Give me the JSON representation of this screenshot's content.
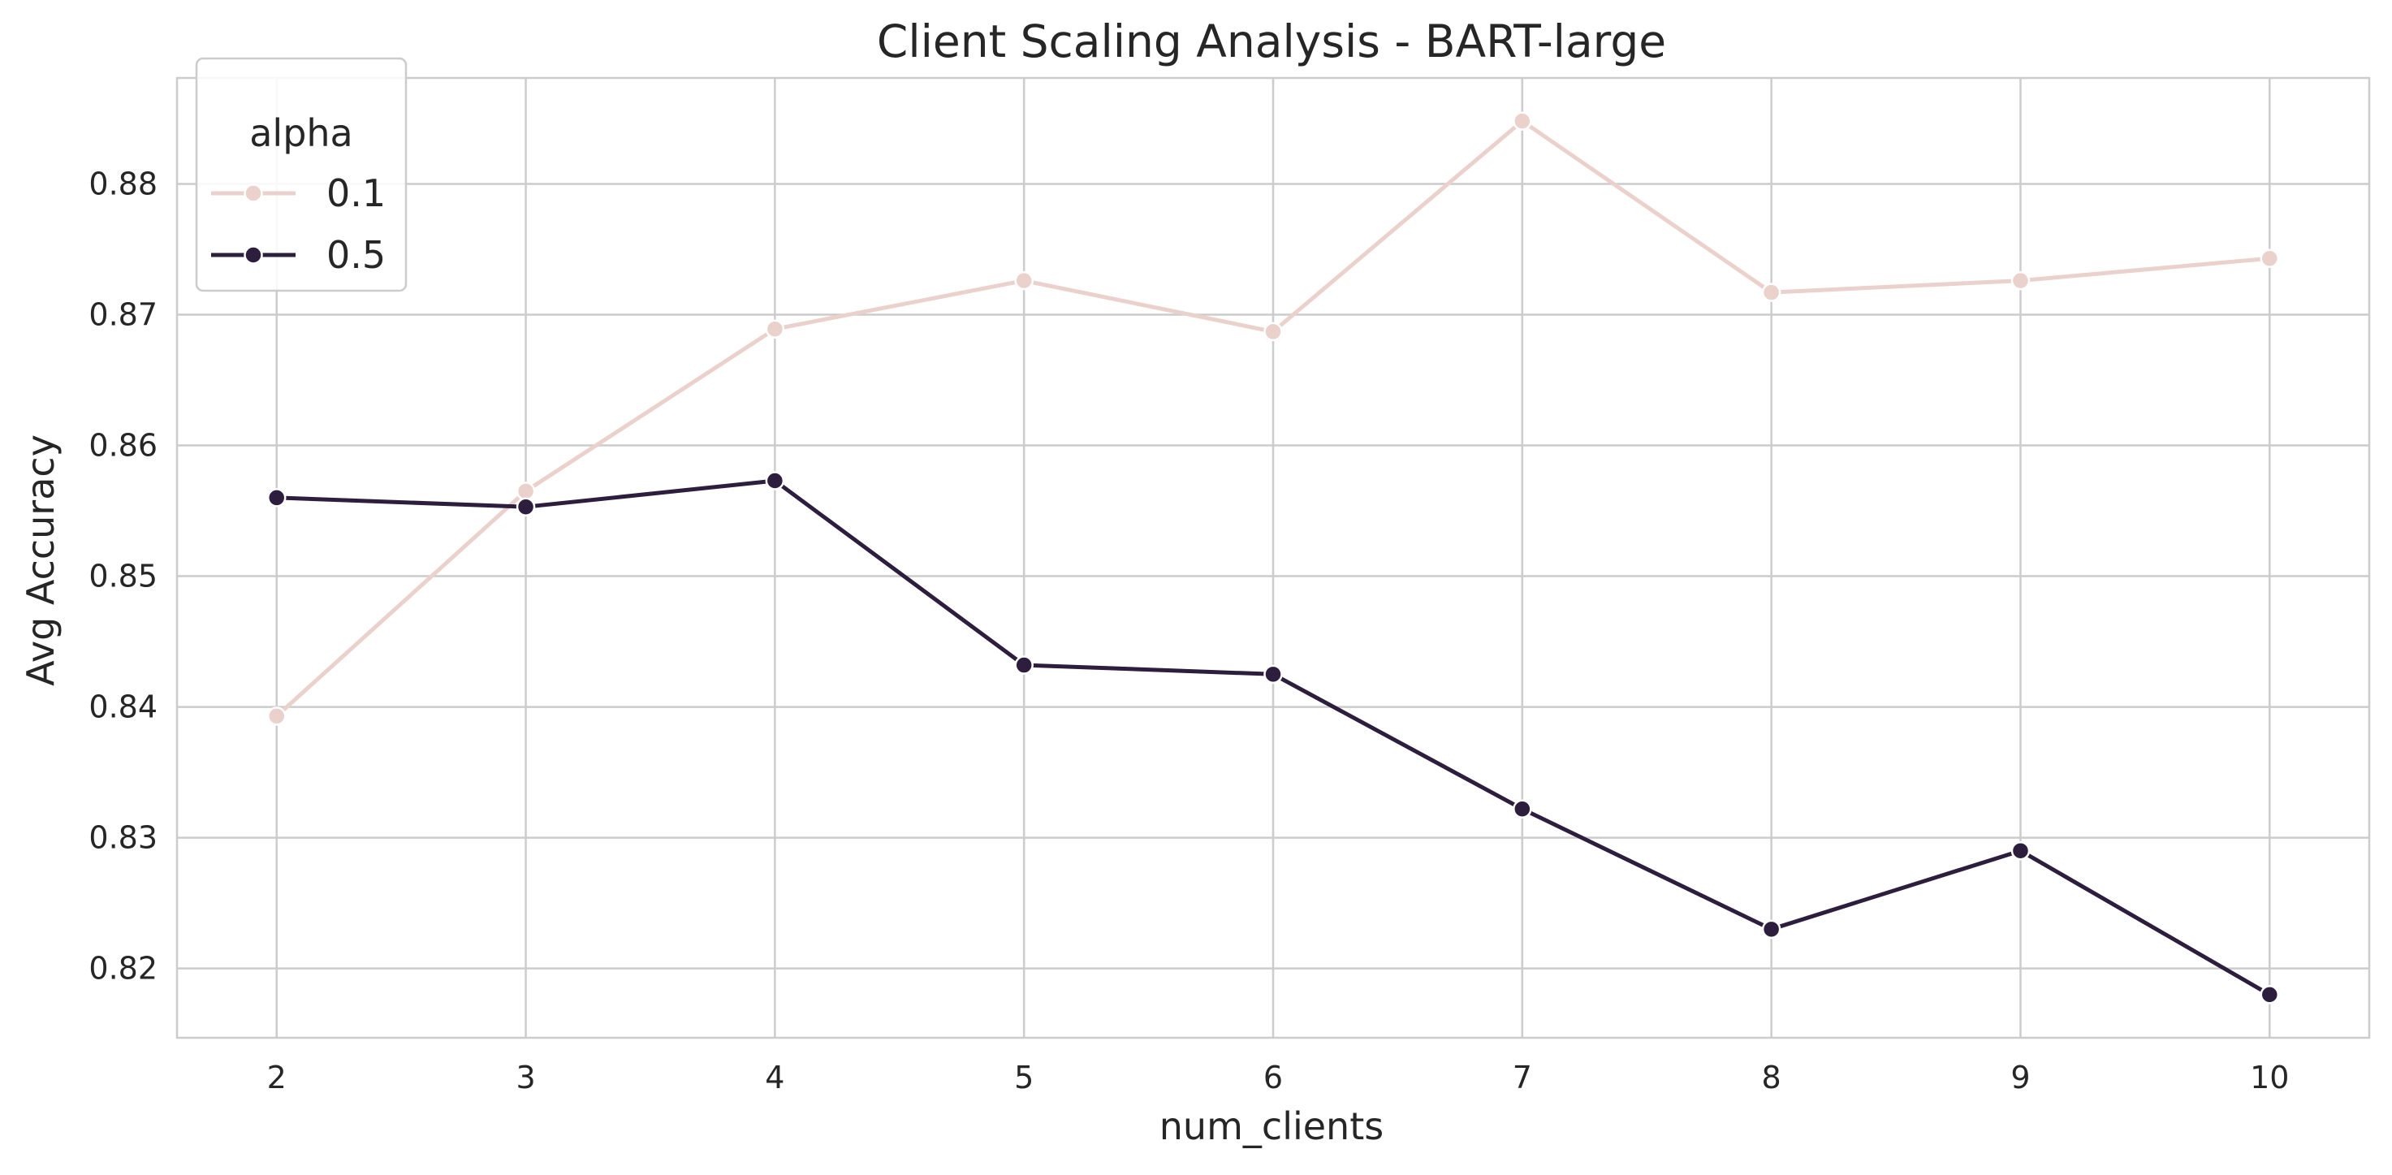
{
  "chart_data": {
    "type": "line",
    "title": "Client Scaling Analysis - BART-large",
    "xlabel": "num_clients",
    "ylabel": "Avg Accuracy",
    "x": [
      2,
      3,
      4,
      5,
      6,
      7,
      8,
      9,
      10
    ],
    "xlim": [
      1.6,
      10.4
    ],
    "ylim": [
      0.8147,
      0.8881
    ],
    "yticks": [
      0.82,
      0.83,
      0.84,
      0.85,
      0.86,
      0.87,
      0.88
    ],
    "ytick_labels": [
      "0.82",
      "0.83",
      "0.84",
      "0.85",
      "0.86",
      "0.87",
      "0.88"
    ],
    "xticks": [
      2,
      3,
      4,
      5,
      6,
      7,
      8,
      9,
      10
    ],
    "xtick_labels": [
      "2",
      "3",
      "4",
      "5",
      "6",
      "7",
      "8",
      "9",
      "10"
    ],
    "grid": true,
    "legend": {
      "title": "alpha",
      "placement": "top-left"
    },
    "series": [
      {
        "name": "0.1",
        "color": "#ebd1cb",
        "values": [
          0.8393,
          0.8565,
          0.8689,
          0.8726,
          0.8687,
          0.8848,
          0.8717,
          0.8726,
          0.8743
        ]
      },
      {
        "name": "0.5",
        "color": "#2d1e3e",
        "values": [
          0.856,
          0.8553,
          0.8573,
          0.8432,
          0.8425,
          0.8322,
          0.823,
          0.829,
          0.818
        ]
      }
    ]
  }
}
